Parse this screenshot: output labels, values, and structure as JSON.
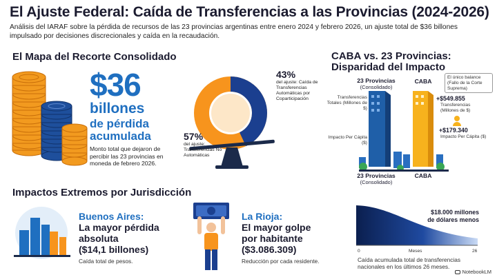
{
  "header": {
    "title": "El Ajuste Federal: Caída de Transferencias a las Provincias (2024-2026)",
    "subtitle": "Análisis del IARAF sobre la pérdida de recursos de las 23 provincias argentinas entre enero 2024 y febrero 2026, un ajuste total de $36 billones impulsado por decisiones discrecionales y caída en la recaudación."
  },
  "mapa": {
    "heading": "El Mapa del Recorte Consolidado",
    "amount": "$36",
    "line1": "billones",
    "line2": "de pérdida",
    "line3": "acumulada",
    "desc": "Monto total que dejaron de percibir las 23 provincias en moneda de febrero 2026.",
    "pct_auto": "43%",
    "pct_auto_label": "del ajuste: Caída de Transferencias Automáticas por Coparticipación",
    "pct_no_auto": "57%",
    "pct_no_auto_label": "del ajuste: Transferencias No Automáticas",
    "colors": {
      "orange": "#f7941d",
      "navy": "#1b3f8f"
    }
  },
  "caba": {
    "heading_l1": "CABA vs. 23 Provincias:",
    "heading_l2": "Disparidad del Impacto",
    "col_prov": "23 Provincias",
    "col_prov_sub": "(Consolidado)",
    "col_caba": "CABA",
    "note": "El único balance (Fallo de la Corte Suprema)",
    "row1_label": "Transferencias Totales (Millones de $)",
    "row2_label": "Impacto Per Cápita ($)",
    "caba_val1": "+$549.855",
    "caba_val1_label": "Transferencias (Millones de $)",
    "caba_val2": "+$179.340",
    "caba_val2_label": "Impacto Per Cápita ($)",
    "bottom_prov": "23 Provincias",
    "bottom_prov_sub": "(Consolidado)",
    "bottom_caba": "CABA"
  },
  "impactos": {
    "heading": "Impactos Extremos por Jurisdicción",
    "ba_place": "Buenos Aires:",
    "ba_l1": "La mayor pérdida",
    "ba_l2": "absoluta",
    "ba_l3": "($14,1 billones)",
    "ba_foot": "Caída total de pesos.",
    "lr_place": "La Rioja:",
    "lr_l1": "El mayor golpe",
    "lr_l2": "por habitante",
    "lr_l3": "($3.086.309)",
    "lr_foot": "Reducción por cada residente.",
    "curve_label_l1": "$18.000 millones",
    "curve_label_l2": "de dólares menos",
    "axis_start": "0",
    "axis_mid": "Meses",
    "axis_end": "26",
    "curve_foot": "Caída acumulada total de transferencias nacionales en los últimos 26 meses."
  },
  "footer": {
    "brand": "NotebookLM"
  }
}
